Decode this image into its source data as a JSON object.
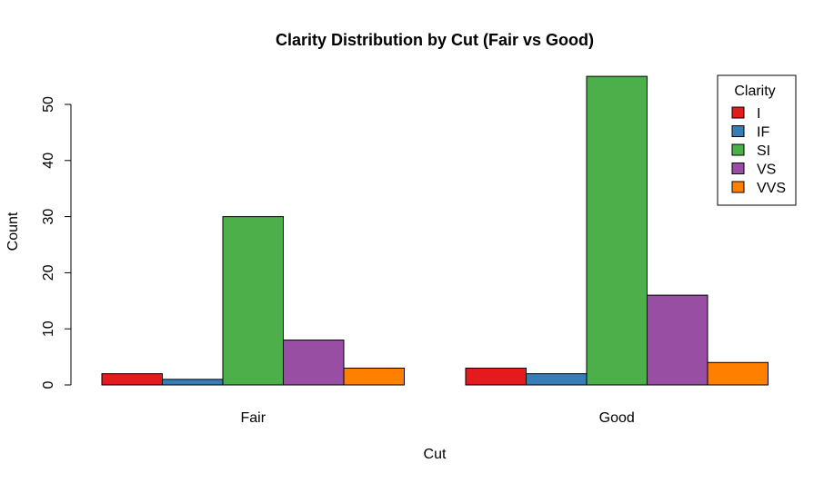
{
  "chart_data": {
    "type": "bar",
    "title": "Clarity Distribution by Cut (Fair vs Good)",
    "xlabel": "Cut",
    "ylabel": "Count",
    "categories": [
      "Fair",
      "Good"
    ],
    "y_ticks": [
      "0",
      "10",
      "20",
      "30",
      "40",
      "50"
    ],
    "legend_title": "Clarity",
    "legend_position": "top-right",
    "grid": false,
    "series": [
      {
        "name": "I",
        "color": "#E41A1C",
        "values": [
          2,
          3
        ]
      },
      {
        "name": "IF",
        "color": "#377EB8",
        "values": [
          1,
          2
        ]
      },
      {
        "name": "SI",
        "color": "#4DAF4A",
        "values": [
          30,
          55
        ]
      },
      {
        "name": "VS",
        "color": "#984EA3",
        "values": [
          8,
          16
        ]
      },
      {
        "name": "VVS",
        "color": "#FF7F00",
        "values": [
          3,
          4
        ]
      }
    ]
  }
}
